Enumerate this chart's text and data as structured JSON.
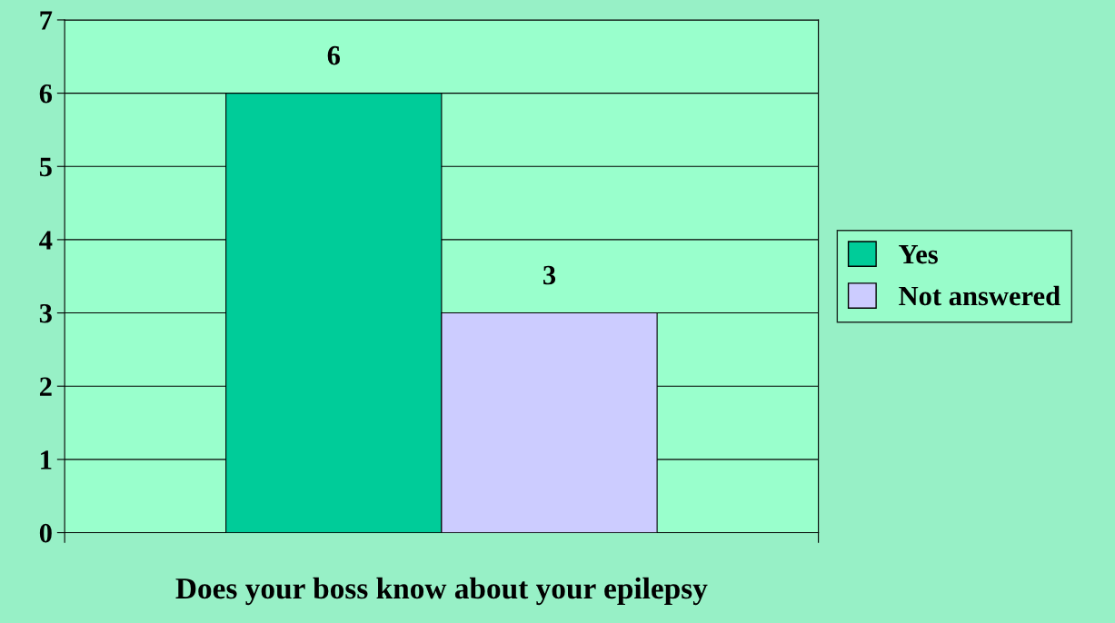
{
  "chart_data": {
    "type": "bar",
    "xlabel": "Does your boss know about your epilepsy",
    "categories": [
      null
    ],
    "series": [
      {
        "name": "Yes",
        "color": "#00cc99",
        "values": [
          6
        ]
      },
      {
        "name": "Not answered",
        "color": "#ccccff",
        "values": [
          3
        ]
      }
    ],
    "ylim": [
      0,
      7
    ],
    "yticks": [
      0,
      1,
      2,
      3,
      4,
      5,
      6,
      7
    ],
    "grid": "y",
    "legend": "right",
    "data_labels": true
  }
}
